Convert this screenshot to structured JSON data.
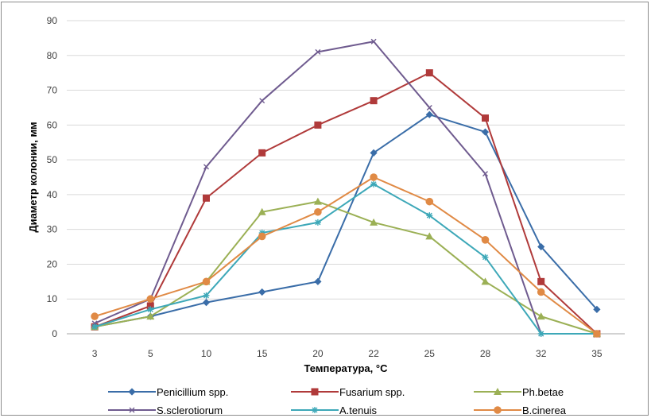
{
  "chart_data": {
    "type": "line",
    "title": "",
    "xlabel": "Температура, °С",
    "ylabel": "Диаметр колонии, мм",
    "categories": [
      "3",
      "5",
      "10",
      "15",
      "20",
      "22",
      "25",
      "28",
      "32",
      "35"
    ],
    "ylim": [
      0,
      90
    ],
    "yticks": [
      0,
      10,
      20,
      30,
      40,
      50,
      60,
      70,
      80,
      90
    ],
    "grid": true,
    "legend_position": "bottom",
    "series": [
      {
        "name": "Penicillium spp.",
        "color": "#3a6da8",
        "marker": "diamond",
        "values": [
          2,
          5,
          9,
          12,
          15,
          52,
          63,
          58,
          25,
          7
        ]
      },
      {
        "name": "Fusarium spp.",
        "color": "#b03a3a",
        "marker": "square",
        "values": [
          2,
          8,
          39,
          52,
          60,
          67,
          75,
          62,
          15,
          0
        ]
      },
      {
        "name": "Ph.betae",
        "color": "#9bb055",
        "marker": "triangle",
        "values": [
          2,
          5,
          15,
          35,
          38,
          32,
          28,
          15,
          5,
          0
        ]
      },
      {
        "name": "S.sclerotiorum",
        "color": "#6f5b8f",
        "marker": "x",
        "values": [
          3,
          10,
          48,
          67,
          81,
          84,
          65,
          46,
          0,
          0
        ]
      },
      {
        "name": "A.tenuis",
        "color": "#3da8b8",
        "marker": "star",
        "values": [
          2,
          7,
          11,
          29,
          32,
          43,
          34,
          22,
          0,
          0
        ]
      },
      {
        "name": "B.cinerea",
        "color": "#e08a45",
        "marker": "circle",
        "values": [
          5,
          10,
          15,
          28,
          35,
          45,
          38,
          27,
          12,
          0
        ]
      }
    ]
  }
}
